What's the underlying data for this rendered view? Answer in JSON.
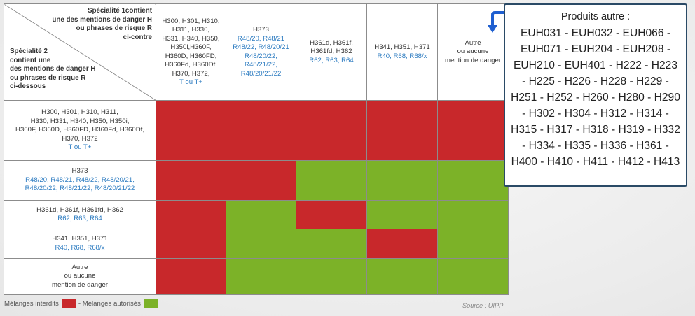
{
  "corner": {
    "top_text": "Spécialité 1contient\nune des mentions de danger H\nou phrases de risque R\nci-contre",
    "bottom_text": "Spécialité 2\ncontient une\ndes mentions de danger H\nou phrases de risque R\nci-dessous"
  },
  "columns": [
    {
      "dark": "H300, H301, H310,\nH311, H330,\nH331, H340, H350,\nH350i,H360F,\nH360D, H360FD,\nH360Fd, H360Df,\nH370, H372,",
      "blue": "T ou T+"
    },
    {
      "dark": "H373",
      "blue": "R48/20, R48/21\nR48/22, R48/20/21\nR48/20/22,\nR48/21/22,\nR48/20/21/22"
    },
    {
      "dark": "H361d, H361f,\nH361fd, H362",
      "blue": "R62, R63, R64"
    },
    {
      "dark": "H341, H351, H371",
      "blue": "R40, R68, R68/x"
    },
    {
      "dark": "Autre\nou aucune\nmention de danger",
      "blue": ""
    }
  ],
  "rows": [
    {
      "dark": "H300, H301, H310, H311,\nH330, H331, H340, H350, H350i,\nH360F, H360D, H360FD, H360Fd, H360Df,\nH370, H372",
      "blue": "T ou T+"
    },
    {
      "dark": "H373",
      "blue": "R48/20, R48/21, R48/22, R48/20/21,\nR48/20/22, R48/21/22, R48/20/21/22"
    },
    {
      "dark": "H361d, H361f, H361fd, H362",
      "blue": "R62, R63, R64"
    },
    {
      "dark": "H341, H351, H371",
      "blue": "R40, R68, R68/x"
    },
    {
      "dark": "Autre\nou aucune\nmention de danger",
      "blue": ""
    }
  ],
  "matrix": [
    [
      "red",
      "red",
      "red",
      "red",
      "red"
    ],
    [
      "red",
      "red",
      "green",
      "green",
      "green"
    ],
    [
      "red",
      "green",
      "red",
      "green",
      "green"
    ],
    [
      "red",
      "green",
      "green",
      "red",
      "green"
    ],
    [
      "red",
      "green",
      "green",
      "green",
      "green"
    ]
  ],
  "colors": {
    "forbidden": "#c8282b",
    "allowed": "#7cb228",
    "callout_border": "#2a4a66",
    "arrow": "#1f5fd0"
  },
  "legend": {
    "forbidden_label": "Mélanges interdits",
    "allowed_label": "- Mélanges autorisés"
  },
  "source": "Source : UIPP",
  "callout": {
    "title": "Produits autre :",
    "body": "EUH031 - EUH032 - EUH066 - EUH071 - EUH204  - EUH208 - EUH210 - EUH401 - H222 - H223 - H225 - H226 - H228 - H229 - H251 - H252 - H260 - H280 - H290 - H302 - H304 - H312 - H314 - H315 - H317 - H318 - H319 - H332 - H334 - H335 - H336 - H361 - H400 - H410 - H411 - H412 - H413"
  }
}
